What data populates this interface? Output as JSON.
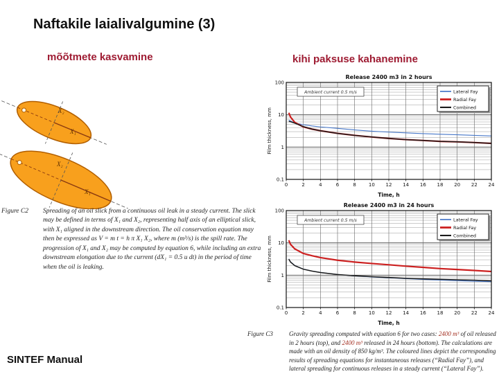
{
  "slide": {
    "title": "Naftakile laialivalgumine (3)",
    "left_heading": "mõõtmete kasvamine",
    "right_heading": "kihi paksuse kahanemine",
    "footer": "SINTEF Manual",
    "accent_color": "#9e1b32"
  },
  "figure_c2": {
    "label": "Figure C2",
    "caption": "Spreading of an oil slick from a continuous oil leak in a steady current. The slick may be defined in terms of X₁ and X₂, representing half axis of an elliptical slick, with X₁ aligned in the downstream direction. The oil conservation equation may then be expressed as V = m t = h π X₁ X₂, where m (m³/s) is the spill rate. The progression of X₁ and X₂ may be computed by equation 6, while including an extra downstream elongation due to the current (dX₁ = 0.5 u dt) in the period of time when the oil is leaking.",
    "ellipse_labels": {
      "x1": "X₁",
      "x2": "X₂"
    },
    "fill_color": "#F8A01D",
    "outline_color": "#B15E00"
  },
  "figure_c3": {
    "label": "Figure C3",
    "parts": [
      {
        "text": "Gravity spreading computed with equation 6 for two cases: "
      },
      {
        "text": "2400 m³"
      },
      {
        "text": " of oil released in 2 hours (top), and "
      },
      {
        "text": "2400 m³"
      },
      {
        "text": " released in 24 hours (bottom). The calculations are made with an oil density of 850 kg/m³. The coloured lines depict the corresponding results of spreading equations for instantaneous releases (“Radial Fay”), and lateral spreading for continuous releases in a steady current (“Lateral Fay”)."
      }
    ]
  },
  "chart_data": [
    {
      "type": "line",
      "title": "Release 2400 m3 in 2 hours",
      "xlabel": "Time, h",
      "ylabel": "Film thickness, mm",
      "annotation": "Ambient current 0.5 m/s",
      "grid": true,
      "legend_position": "top-right",
      "xlim": [
        0,
        24
      ],
      "ylim_log": [
        0.1,
        100
      ],
      "x_ticks": [
        0,
        2,
        4,
        6,
        8,
        10,
        12,
        14,
        16,
        18,
        20,
        22,
        24
      ],
      "y_ticks": [
        100,
        10,
        1,
        0.1
      ],
      "x": [
        0.3,
        0.5,
        1,
        2,
        3,
        4,
        6,
        8,
        10,
        12,
        14,
        16,
        18,
        20,
        22,
        24
      ],
      "series": [
        {
          "name": "Lateral Fay",
          "color": "#4576c8",
          "width": 1.1,
          "values": [
            6.8,
            6.4,
            5.6,
            4.9,
            4.5,
            4.2,
            3.8,
            3.4,
            3.1,
            2.9,
            2.75,
            2.6,
            2.5,
            2.4,
            2.3,
            2.2
          ]
        },
        {
          "name": "Radial Fay",
          "color": "#cc2020",
          "width": 2.2,
          "values": [
            11.5,
            8.5,
            5.8,
            4.2,
            3.6,
            3.2,
            2.65,
            2.3,
            2.05,
            1.85,
            1.7,
            1.6,
            1.5,
            1.45,
            1.38,
            1.3
          ]
        },
        {
          "name": "Combined",
          "color": "#1a1a1a",
          "width": 1.5,
          "values": [
            6.2,
            6.1,
            5.5,
            4.3,
            3.6,
            3.2,
            2.65,
            2.3,
            2.05,
            1.85,
            1.7,
            1.6,
            1.5,
            1.45,
            1.38,
            1.3
          ]
        }
      ]
    },
    {
      "type": "line",
      "title": "Release 2400 m3 in 24 hours",
      "xlabel": "Time, h",
      "ylabel": "Film thickness, mm",
      "annotation": "Ambient current 0.5 m/s",
      "grid": true,
      "legend_position": "top-right",
      "xlim": [
        0,
        24
      ],
      "ylim_log": [
        0.1,
        100
      ],
      "x_ticks": [
        0,
        2,
        4,
        6,
        8,
        10,
        12,
        14,
        16,
        18,
        20,
        22,
        24
      ],
      "y_ticks": [
        100,
        10,
        1,
        0.1
      ],
      "x": [
        0.3,
        0.5,
        1,
        2,
        3,
        4,
        6,
        8,
        10,
        12,
        14,
        16,
        18,
        20,
        22,
        24
      ],
      "series": [
        {
          "name": "Lateral Fay",
          "color": "#4576c8",
          "width": 1.1,
          "values": [
            3.2,
            2.6,
            2.0,
            1.55,
            1.35,
            1.22,
            1.05,
            0.95,
            0.88,
            0.83,
            0.78,
            0.74,
            0.71,
            0.68,
            0.65,
            0.63
          ]
        },
        {
          "name": "Radial Fay",
          "color": "#cc2020",
          "width": 2.2,
          "values": [
            12,
            9,
            6.5,
            4.7,
            4.0,
            3.5,
            2.9,
            2.55,
            2.3,
            2.1,
            1.9,
            1.75,
            1.6,
            1.5,
            1.4,
            1.3
          ]
        },
        {
          "name": "Combined",
          "color": "#1a1a1a",
          "width": 1.5,
          "values": [
            3.15,
            2.55,
            1.97,
            1.53,
            1.34,
            1.21,
            1.05,
            0.96,
            0.9,
            0.85,
            0.8,
            0.77,
            0.74,
            0.72,
            0.7,
            0.67
          ]
        }
      ]
    }
  ]
}
